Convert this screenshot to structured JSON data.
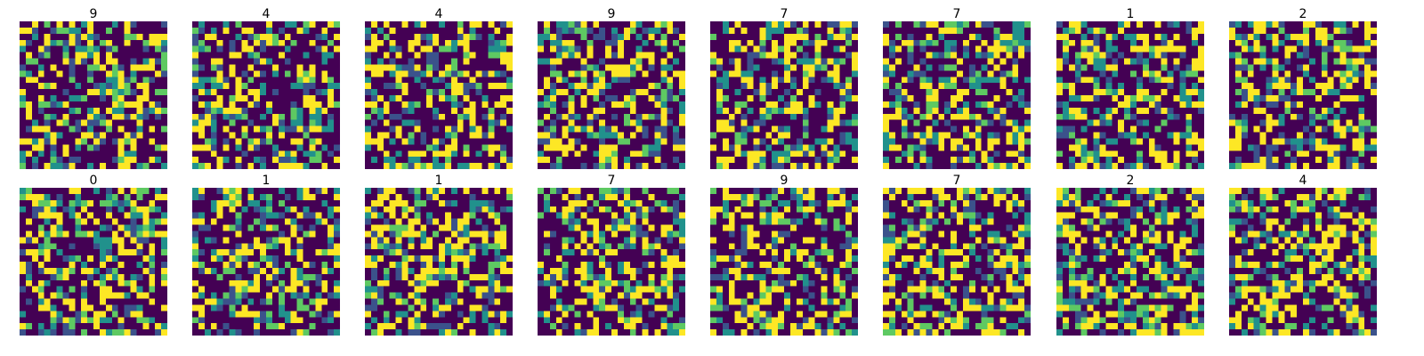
{
  "chart_data": {
    "type": "heatmap",
    "layout": {
      "rows": 2,
      "cols": 8
    },
    "grid_size": [
      24,
      24
    ],
    "colormap": [
      "#440154",
      "#3b528b",
      "#21918c",
      "#5ec962",
      "#fde725"
    ],
    "axes_visible": false,
    "panels": [
      {
        "label": "9",
        "seed": 101
      },
      {
        "label": "4",
        "seed": 202
      },
      {
        "label": "4",
        "seed": 303
      },
      {
        "label": "9",
        "seed": 404
      },
      {
        "label": "7",
        "seed": 505
      },
      {
        "label": "7",
        "seed": 606
      },
      {
        "label": "1",
        "seed": 707
      },
      {
        "label": "2",
        "seed": 808
      },
      {
        "label": "0",
        "seed": 909
      },
      {
        "label": "1",
        "seed": 1010
      },
      {
        "label": "1",
        "seed": 1111
      },
      {
        "label": "7",
        "seed": 1212
      },
      {
        "label": "9",
        "seed": 1313
      },
      {
        "label": "7",
        "seed": 1414
      },
      {
        "label": "2",
        "seed": 1515
      },
      {
        "label": "4",
        "seed": 1616
      }
    ]
  }
}
